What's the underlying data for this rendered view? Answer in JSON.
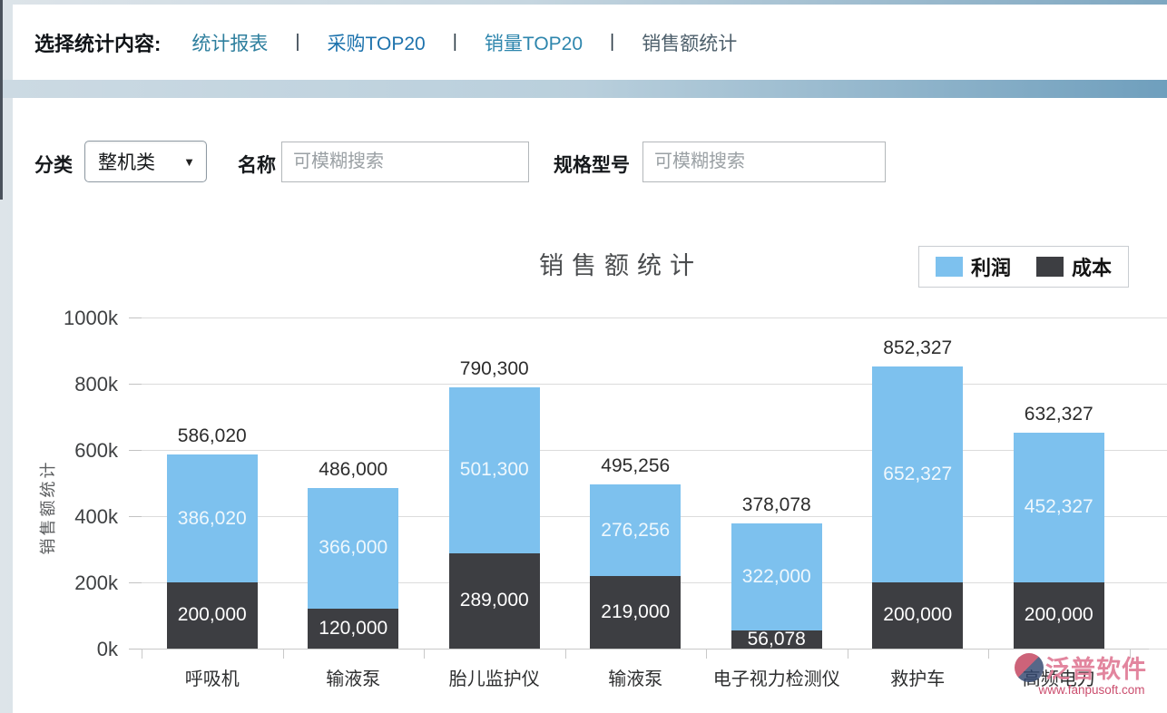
{
  "nav": {
    "title": "选择统计内容:",
    "separator": "|",
    "links": [
      {
        "label": "统计报表",
        "color": "#2e7f9e"
      },
      {
        "label": "采购TOP20",
        "color": "#1e73ad"
      },
      {
        "label": "销量TOP20",
        "color": "#2e86ad"
      },
      {
        "label": "销售额统计",
        "color": "#4d5f6b"
      }
    ]
  },
  "filters": {
    "category_label": "分类",
    "category_value": "整机类",
    "name_label": "名称",
    "name_placeholder": "可模糊搜索",
    "spec_label": "规格型号",
    "spec_placeholder": "可模糊搜索"
  },
  "chart_data": {
    "type": "bar",
    "stacked": true,
    "title": "销售额统计",
    "ylabel": "销售额统计",
    "xlabel": "",
    "ylim": [
      0,
      1000000
    ],
    "ytick_labels": [
      "0k",
      "200k",
      "400k",
      "600k",
      "800k",
      "1000k"
    ],
    "grid": true,
    "legend_position": "top-right",
    "categories": [
      "呼吸机",
      "输液泵",
      "胎儿监护仪",
      "输液泵",
      "电子视力检测仪",
      "救护车",
      "高频电刀"
    ],
    "series": [
      {
        "name": "成本",
        "color": "#3d3e42",
        "values": [
          200000,
          120000,
          289000,
          219000,
          56078,
          200000,
          200000
        ],
        "labels": [
          "200,000",
          "120,000",
          "289,000",
          "219,000",
          "56,078",
          "200,000",
          "200,000"
        ]
      },
      {
        "name": "利润",
        "color": "#7dc1ee",
        "values": [
          386020,
          366000,
          501300,
          276256,
          322000,
          652327,
          452327
        ],
        "labels": [
          "386,020",
          "366,000",
          "501,300",
          "276,256",
          "322,000",
          "652,327",
          "452,327"
        ]
      }
    ],
    "totals": [
      586020,
      486000,
      790300,
      495256,
      378078,
      852327,
      632327
    ],
    "total_labels": [
      "586,020",
      "486,000",
      "790,300",
      "495,256",
      "378,078",
      "852,327",
      "632,327"
    ]
  },
  "legend": {
    "items": [
      {
        "label": "利润",
        "color": "#7dc1ee"
      },
      {
        "label": "成本",
        "color": "#3d3e42"
      }
    ]
  },
  "watermark": {
    "brand": "泛普软件",
    "url": "www.fanpusoft.com"
  }
}
